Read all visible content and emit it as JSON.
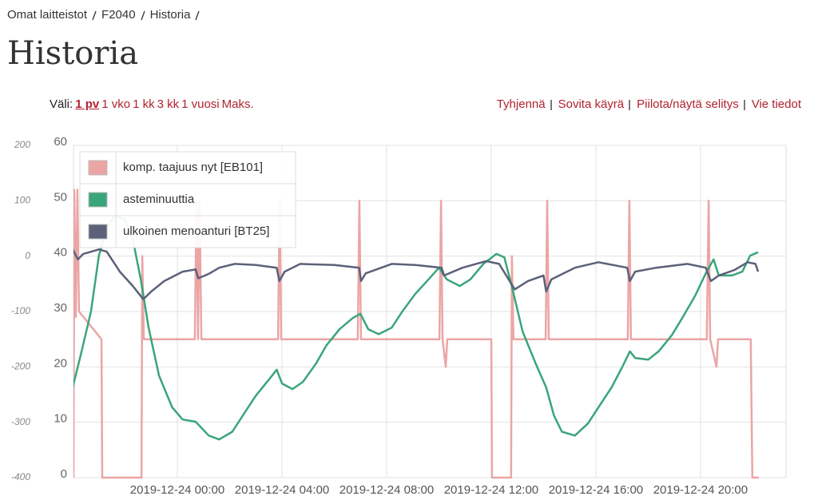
{
  "breadcrumb": [
    "Omat laitteistot",
    "F2040",
    "Historia"
  ],
  "title": "Historia",
  "range": {
    "label": "Väli:",
    "options": [
      "1 pv",
      "1 vko",
      "1 kk",
      "3 kk",
      "1 vuosi",
      "Maks."
    ],
    "selected": 0
  },
  "actions": [
    "Tyhjennä",
    "Sovita käyrä",
    "Piilota/näytä selitys",
    "Vie tiedot"
  ],
  "chart_data": {
    "type": "line",
    "grid": true,
    "legend": "top-left",
    "xlim": [
      -3.97,
      23.27
    ],
    "xticks": [
      {
        "value": 0,
        "label": "2019-12-24 00:00"
      },
      {
        "value": 4,
        "label": "2019-12-24 04:00"
      },
      {
        "value": 8,
        "label": "2019-12-24 08:00"
      },
      {
        "value": 12,
        "label": "2019-12-24 12:00"
      },
      {
        "value": 16,
        "label": "2019-12-24 16:00"
      },
      {
        "value": 20,
        "label": "2019-12-24 20:00"
      }
    ],
    "ylim": [
      0,
      60
    ],
    "yticks": [
      0,
      10,
      20,
      30,
      40,
      50,
      60
    ],
    "y2lim": [
      -400,
      200
    ],
    "y2ticks": [
      -400,
      -300,
      -200,
      -100,
      0,
      100,
      200
    ],
    "series": [
      {
        "name": "komp. taajuus nyt [EB101]",
        "color": "#eba5a5",
        "x": [
          -3.97,
          -3.94,
          -3.88,
          -3.82,
          -3.76,
          -2.9,
          -2.87,
          -1.37,
          -1.34,
          -1.28,
          0.67,
          0.73,
          0.79,
          0.85,
          0.92,
          3.85,
          3.91,
          3.97,
          6.9,
          6.96,
          7.02,
          10.02,
          10.08,
          10.14,
          10.26,
          10.32,
          12.0,
          12.03,
          12.76,
          12.79,
          12.85,
          14.08,
          14.14,
          14.2,
          17.22,
          17.28,
          17.34,
          20.24,
          20.31,
          20.37,
          20.61,
          20.67,
          21.92,
          21.98,
          22.23
        ],
        "values": [
          0,
          52,
          29,
          52,
          30,
          25,
          0,
          0,
          40,
          25,
          25,
          50,
          25,
          50,
          25,
          25,
          50,
          25,
          25,
          50,
          25,
          25,
          50,
          25,
          20,
          25,
          25,
          0,
          0,
          40,
          25,
          25,
          50,
          25,
          25,
          50,
          25,
          25,
          50,
          25,
          20,
          25,
          25,
          0,
          0
        ]
      },
      {
        "name": "asteminuuttia",
        "color": "#3aa57a",
        "axis": "y2",
        "x": [
          -4.0,
          -3.7,
          -3.3,
          -3.0,
          -2.7,
          -2.4,
          -2.0,
          -1.7,
          -1.4,
          -1.1,
          -0.7,
          -0.2,
          0.2,
          0.7,
          1.2,
          1.6,
          2.1,
          2.5,
          3.0,
          3.5,
          3.8,
          4.0,
          4.4,
          4.8,
          5.3,
          5.7,
          6.2,
          6.7,
          7.0,
          7.3,
          7.7,
          8.2,
          8.6,
          9.1,
          9.6,
          10.0,
          10.3,
          10.8,
          11.2,
          11.7,
          12.2,
          12.5,
          12.8,
          13.2,
          13.7,
          14.1,
          14.4,
          14.7,
          15.2,
          15.7,
          16.1,
          16.6,
          17.0,
          17.3,
          17.5,
          18.0,
          18.4,
          18.9,
          19.3,
          19.8,
          20.2,
          20.5,
          20.7,
          21.2,
          21.6,
          21.9,
          22.2
        ],
        "values": [
          -237,
          -180,
          -100,
          1,
          51,
          73,
          66,
          30,
          -42,
          -129,
          -216,
          -273,
          -295,
          -299,
          -324,
          -331,
          -317,
          -288,
          -252,
          -223,
          -205,
          -230,
          -240,
          -227,
          -194,
          -161,
          -132,
          -112,
          -104,
          -132,
          -141,
          -129,
          -100,
          -68,
          -42,
          -21,
          -42,
          -54,
          -42,
          -14,
          4,
          -2,
          -57,
          -136,
          -194,
          -237,
          -288,
          -317,
          -324,
          -302,
          -273,
          -237,
          -201,
          -172,
          -184,
          -187,
          -172,
          -143,
          -112,
          -71,
          -31,
          -6,
          -35,
          -35,
          -28,
          1,
          7
        ]
      },
      {
        "name": "ulkoinen menoanturi [BT25]",
        "color": "#5b6179",
        "x": [
          -4.0,
          -3.8,
          -3.6,
          -3.0,
          -2.7,
          -2.2,
          -1.7,
          -1.3,
          -1.0,
          -0.5,
          0.2,
          0.7,
          0.8,
          1.2,
          1.6,
          2.2,
          3.0,
          3.8,
          3.9,
          4.1,
          4.7,
          6.0,
          6.95,
          7.02,
          7.2,
          8.2,
          9.1,
          10.1,
          10.2,
          10.9,
          11.8,
          12.3,
          12.9,
          13.4,
          14.0,
          14.1,
          14.3,
          15.2,
          16.1,
          17.2,
          17.3,
          17.5,
          18.3,
          19.5,
          20.2,
          20.4,
          20.7,
          21.3,
          21.8,
          22.1,
          22.2
        ],
        "values": [
          41.2,
          39.4,
          40.4,
          41.2,
          40.8,
          37.2,
          34.6,
          32.2,
          33.6,
          35.5,
          37.2,
          37.6,
          36.0,
          36.8,
          37.9,
          38.6,
          38.4,
          37.9,
          35.5,
          37.2,
          38.6,
          38.4,
          37.9,
          35.5,
          36.9,
          38.6,
          38.4,
          37.9,
          36.5,
          37.9,
          39.1,
          38.6,
          34.0,
          35.5,
          36.5,
          33.6,
          35.8,
          37.9,
          38.9,
          37.9,
          35.5,
          37.2,
          37.9,
          38.6,
          37.9,
          35.5,
          36.5,
          37.5,
          38.9,
          38.6,
          37.2
        ]
      }
    ]
  }
}
